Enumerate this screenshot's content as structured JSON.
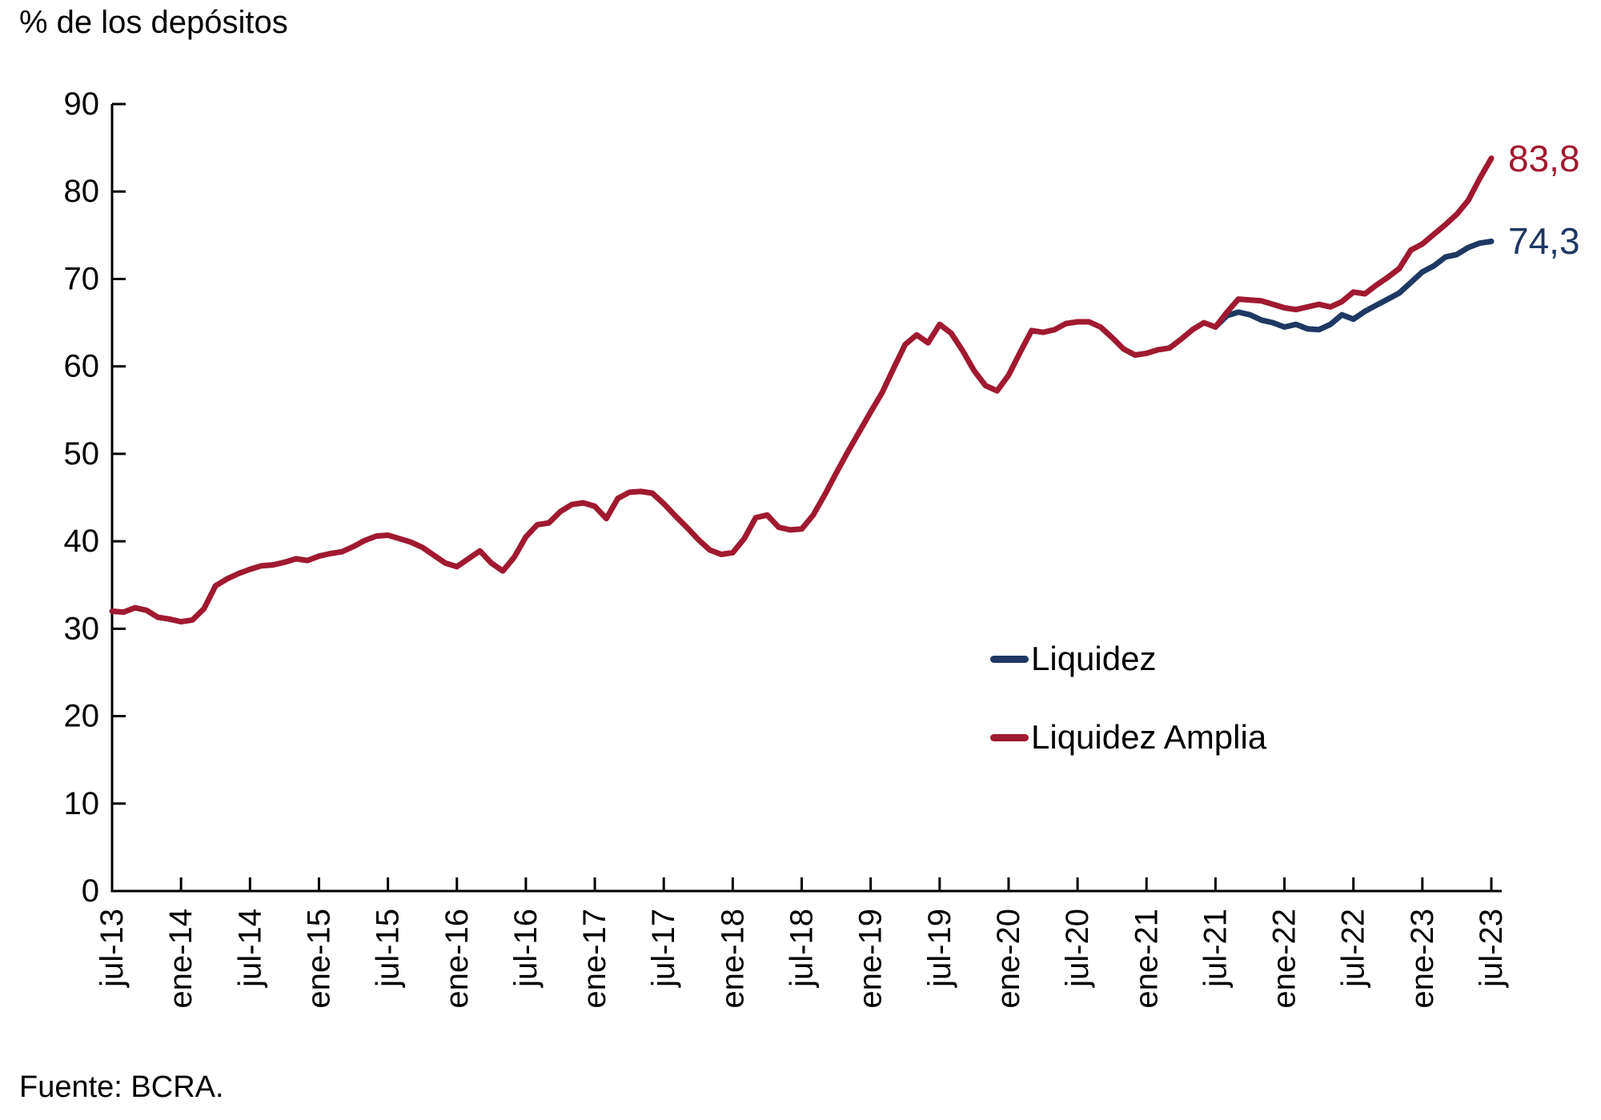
{
  "title": "% de los depósitos",
  "source": "Fuente: BCRA.",
  "legend": [
    {
      "label": "Liquidez",
      "color": "#1F3864"
    },
    {
      "label": "Liquidez Amplia",
      "color": "#A01931"
    }
  ],
  "chart_data": {
    "type": "line",
    "title": "% de los depósitos",
    "xlabel": "",
    "ylabel": "% de los depósitos",
    "ylim": [
      0,
      90
    ],
    "y_tick_step": 10,
    "grid": false,
    "legend_position": "center-right",
    "x_frequency": "monthly",
    "x_range": [
      "jul-13",
      "jul-23"
    ],
    "x_tick_labels": [
      "jul-13",
      "ene-14",
      "jul-14",
      "ene-15",
      "jul-15",
      "ene-16",
      "jul-16",
      "ene-17",
      "jul-17",
      "ene-18",
      "jul-18",
      "ene-19",
      "jul-19",
      "ene-20",
      "jul-20",
      "ene-21",
      "jul-21",
      "ene-22",
      "jul-22",
      "ene-23",
      "jul-23"
    ],
    "series": [
      {
        "name": "Liquidez",
        "color": "#1F3864",
        "end_label": "74,3",
        "last_value": 74.3,
        "start_month_index": 96,
        "values": [
          64.5,
          65.8,
          66.2,
          65.9,
          65.3,
          65.0,
          64.5,
          64.8,
          64.3,
          64.2,
          64.8,
          65.9,
          65.4,
          66.3,
          67.0,
          67.7,
          68.4,
          69.6,
          70.8,
          71.5,
          72.5,
          72.8,
          73.6,
          74.1,
          74.3
        ]
      },
      {
        "name": "Liquidez Amplia",
        "color": "#A01931",
        "end_label": "83,8",
        "last_value": 83.8,
        "start_month_index": 0,
        "values": [
          32.0,
          31.9,
          32.4,
          32.1,
          31.3,
          31.1,
          30.8,
          31.0,
          32.3,
          34.9,
          35.7,
          36.3,
          36.8,
          37.2,
          37.3,
          37.6,
          38.0,
          37.8,
          38.3,
          38.6,
          38.8,
          39.4,
          40.1,
          40.6,
          40.7,
          40.3,
          39.9,
          39.3,
          38.4,
          37.5,
          37.1,
          38.0,
          38.9,
          37.5,
          36.6,
          38.2,
          40.5,
          41.9,
          42.1,
          43.4,
          44.2,
          44.4,
          44.0,
          42.6,
          44.9,
          45.6,
          45.7,
          45.5,
          44.3,
          42.9,
          41.6,
          40.2,
          39.0,
          38.5,
          38.7,
          40.3,
          42.7,
          43.0,
          41.6,
          41.3,
          41.4,
          43.0,
          45.3,
          47.8,
          50.2,
          52.5,
          54.8,
          57.0,
          59.8,
          62.5,
          63.6,
          62.7,
          64.8,
          63.8,
          61.8,
          59.5,
          57.8,
          57.2,
          59.0,
          61.6,
          64.1,
          63.9,
          64.2,
          64.9,
          65.1,
          65.1,
          64.5,
          63.3,
          62.0,
          61.3,
          61.5,
          61.9,
          62.1,
          63.1,
          64.2,
          65.0,
          64.5,
          66.2,
          67.7,
          67.6,
          67.5,
          67.1,
          66.7,
          66.5,
          66.8,
          67.1,
          66.8,
          67.4,
          68.5,
          68.3,
          69.3,
          70.2,
          71.2,
          73.3,
          74.0,
          75.1,
          76.2,
          77.4,
          79.0,
          81.5,
          83.8
        ]
      }
    ]
  }
}
